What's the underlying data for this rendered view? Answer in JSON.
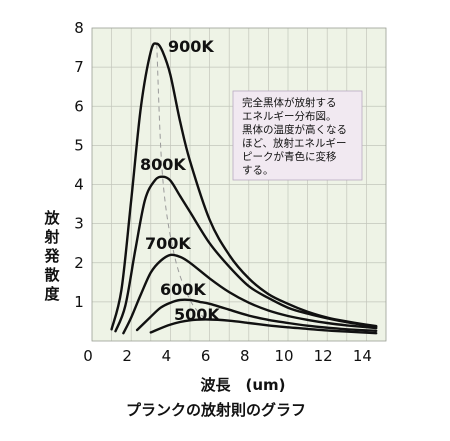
{
  "chart_data": {
    "type": "line",
    "title": "プランクの放射則のグラフ",
    "xlabel": "波長　(um)",
    "ylabel": "放射発散度",
    "xlim": [
      0,
      15
    ],
    "ylim": [
      0,
      8
    ],
    "x_ticks": [
      "0",
      "2",
      "4",
      "6",
      "8",
      "10",
      "12",
      "14"
    ],
    "y_ticks": [
      "1",
      "2",
      "3",
      "4",
      "5",
      "6",
      "7",
      "8"
    ],
    "grid": true,
    "series": [
      {
        "name": "900K",
        "x": [
          1.0,
          1.5,
          2.0,
          2.5,
          3.0,
          3.3,
          3.6,
          4.0,
          4.5,
          5.0,
          6.0,
          7.0,
          8.0,
          9.0,
          10.0,
          11.0,
          12.0,
          13.0,
          14.5
        ],
        "y": [
          0.3,
          1.3,
          3.6,
          6.0,
          7.4,
          7.6,
          7.4,
          6.8,
          5.6,
          4.6,
          3.1,
          2.2,
          1.6,
          1.2,
          0.95,
          0.75,
          0.6,
          0.5,
          0.38
        ]
      },
      {
        "name": "800K",
        "x": [
          1.2,
          1.7,
          2.2,
          2.7,
          3.2,
          3.6,
          4.0,
          4.5,
          5.0,
          6.0,
          7.0,
          8.0,
          9.0,
          10.0,
          11.0,
          12.0,
          13.0,
          14.5
        ],
        "y": [
          0.25,
          0.9,
          2.3,
          3.6,
          4.1,
          4.2,
          4.1,
          3.7,
          3.3,
          2.5,
          1.9,
          1.4,
          1.1,
          0.85,
          0.7,
          0.58,
          0.48,
          0.36
        ]
      },
      {
        "name": "700K",
        "x": [
          1.6,
          2.0,
          2.5,
          3.0,
          3.5,
          4.0,
          4.5,
          5.0,
          6.0,
          7.0,
          8.0,
          9.0,
          10.0,
          11.0,
          12.0,
          13.0,
          14.5
        ],
        "y": [
          0.2,
          0.6,
          1.2,
          1.75,
          2.05,
          2.2,
          2.15,
          2.0,
          1.6,
          1.25,
          0.98,
          0.78,
          0.64,
          0.54,
          0.46,
          0.4,
          0.33
        ]
      },
      {
        "name": "600K",
        "x": [
          2.3,
          3.0,
          3.5,
          4.0,
          4.5,
          5.0,
          5.5,
          6.0,
          7.0,
          8.0,
          9.0,
          10.0,
          11.0,
          12.0,
          13.0,
          14.5
        ],
        "y": [
          0.28,
          0.62,
          0.85,
          0.98,
          1.05,
          1.05,
          1.0,
          0.95,
          0.8,
          0.65,
          0.54,
          0.46,
          0.39,
          0.34,
          0.3,
          0.26
        ]
      },
      {
        "name": "500K",
        "x": [
          3.0,
          4.0,
          5.0,
          6.0,
          7.0,
          8.0,
          9.0,
          10.0,
          11.0,
          12.0,
          13.0,
          14.5
        ],
        "y": [
          0.22,
          0.42,
          0.53,
          0.55,
          0.52,
          0.46,
          0.4,
          0.35,
          0.31,
          0.27,
          0.24,
          0.2
        ]
      }
    ],
    "peak_trend_line": {
      "x": [
        3.3,
        3.6,
        4.2,
        5.0,
        5.8
      ],
      "y": [
        7.6,
        4.2,
        2.2,
        1.05,
        0.55
      ]
    },
    "annotation": {
      "lines": [
        "完全黒体が放射する",
        "エネルギー分布図。",
        "黒体の温度が高くなる",
        "ほど、放射エネルギー",
        "ピークが青色に変移",
        "する。"
      ]
    }
  }
}
